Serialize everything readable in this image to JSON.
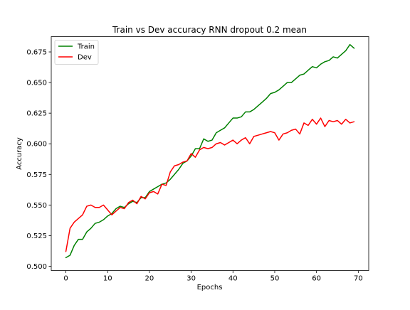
{
  "chart_data": {
    "type": "line",
    "title": "Train vs Dev accuracy RNN dropout 0.2 mean",
    "xlabel": "Epochs",
    "ylabel": "Accuracy",
    "xlim": [
      -3.5,
      72.5
    ],
    "ylim": [
      0.4965,
      0.6875
    ],
    "xticks": [
      0,
      10,
      20,
      30,
      40,
      50,
      60,
      70
    ],
    "yticks": [
      0.5,
      0.525,
      0.55,
      0.575,
      0.6,
      0.625,
      0.65,
      0.675
    ],
    "ytick_labels": [
      "0.500",
      "0.525",
      "0.550",
      "0.575",
      "0.600",
      "0.625",
      "0.650",
      "0.675"
    ],
    "grid": false,
    "legend_position": "upper-left",
    "x": [
      0,
      1,
      2,
      3,
      4,
      5,
      6,
      7,
      8,
      9,
      10,
      11,
      12,
      13,
      14,
      15,
      16,
      17,
      18,
      19,
      20,
      21,
      22,
      23,
      24,
      25,
      26,
      27,
      28,
      29,
      30,
      31,
      32,
      33,
      34,
      35,
      36,
      37,
      38,
      39,
      40,
      41,
      42,
      43,
      44,
      45,
      46,
      47,
      48,
      49,
      50,
      51,
      52,
      53,
      54,
      55,
      56,
      57,
      58,
      59,
      60,
      61,
      62,
      63,
      64,
      65,
      66,
      67,
      68,
      69
    ],
    "series": [
      {
        "name": "Train",
        "color": "#008000",
        "values": [
          0.507,
          0.509,
          0.517,
          0.522,
          0.522,
          0.528,
          0.531,
          0.535,
          0.536,
          0.538,
          0.541,
          0.543,
          0.547,
          0.549,
          0.548,
          0.551,
          0.553,
          0.552,
          0.556,
          0.556,
          0.561,
          0.563,
          0.565,
          0.567,
          0.568,
          0.571,
          0.575,
          0.579,
          0.584,
          0.586,
          0.59,
          0.596,
          0.596,
          0.604,
          0.602,
          0.603,
          0.609,
          0.611,
          0.613,
          0.617,
          0.621,
          0.621,
          0.622,
          0.626,
          0.626,
          0.628,
          0.631,
          0.634,
          0.637,
          0.641,
          0.642,
          0.644,
          0.647,
          0.65,
          0.65,
          0.653,
          0.656,
          0.657,
          0.66,
          0.663,
          0.662,
          0.665,
          0.667,
          0.668,
          0.671,
          0.67,
          0.673,
          0.676,
          0.681,
          0.678
        ]
      },
      {
        "name": "Dev",
        "color": "#ff0000",
        "values": [
          0.512,
          0.531,
          0.536,
          0.539,
          0.542,
          0.549,
          0.55,
          0.548,
          0.548,
          0.55,
          0.546,
          0.542,
          0.545,
          0.548,
          0.547,
          0.552,
          0.554,
          0.551,
          0.557,
          0.555,
          0.56,
          0.561,
          0.559,
          0.567,
          0.566,
          0.577,
          0.582,
          0.583,
          0.585,
          0.586,
          0.592,
          0.589,
          0.595,
          0.597,
          0.596,
          0.597,
          0.6,
          0.601,
          0.599,
          0.601,
          0.603,
          0.6,
          0.603,
          0.605,
          0.6,
          0.606,
          0.607,
          0.608,
          0.609,
          0.61,
          0.609,
          0.603,
          0.608,
          0.609,
          0.611,
          0.612,
          0.608,
          0.617,
          0.615,
          0.62,
          0.616,
          0.621,
          0.614,
          0.619,
          0.618,
          0.619,
          0.616,
          0.62,
          0.617,
          0.618
        ]
      }
    ]
  }
}
